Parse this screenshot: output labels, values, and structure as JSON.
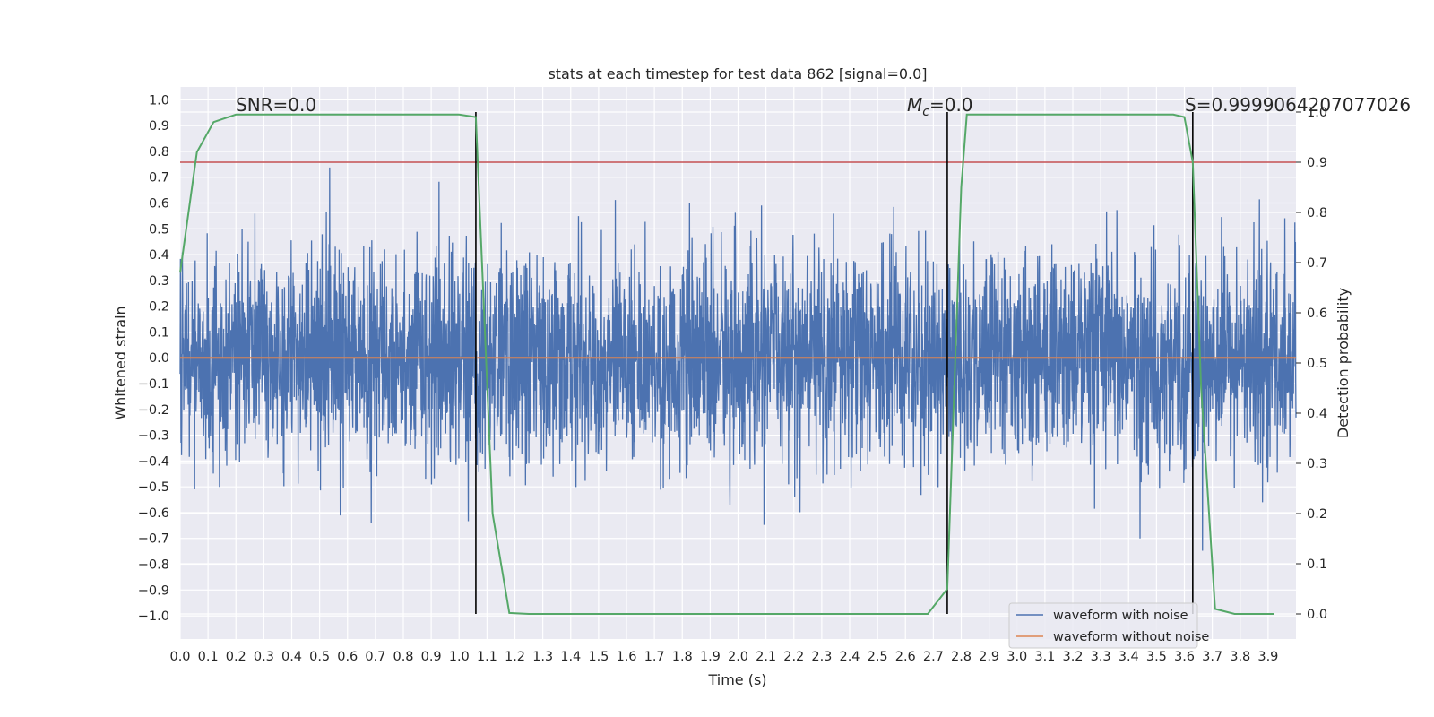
{
  "chart_data": {
    "type": "line",
    "title": "stats at each timestep for test data 862 [signal=0.0]",
    "xlabel": "Time (s)",
    "ylabel": "Whitened strain",
    "ylabel_right": "Detection probability",
    "xlim": [
      0.0,
      4.0
    ],
    "ylim": [
      -1.09,
      1.05
    ],
    "ylim_right": [
      -0.05,
      1.05
    ],
    "x_ticks": [
      "0.0",
      "0.1",
      "0.2",
      "0.3",
      "0.4",
      "0.5",
      "0.6",
      "0.7",
      "0.8",
      "0.9",
      "1.0",
      "1.1",
      "1.2",
      "1.3",
      "1.4",
      "1.5",
      "1.6",
      "1.7",
      "1.8",
      "1.9",
      "2.0",
      "2.1",
      "2.2",
      "2.3",
      "2.4",
      "2.5",
      "2.6",
      "2.7",
      "2.8",
      "2.9",
      "3.0",
      "3.1",
      "3.2",
      "3.3",
      "3.4",
      "3.5",
      "3.6",
      "3.7",
      "3.8",
      "3.9"
    ],
    "y_ticks": [
      "1.0",
      "0.9",
      "0.8",
      "0.7",
      "0.6",
      "0.5",
      "0.4",
      "0.3",
      "0.2",
      "0.1",
      "0.0",
      "−0.1",
      "−0.2",
      "−0.3",
      "−0.4",
      "−0.5",
      "−0.6",
      "−0.7",
      "−0.8",
      "−0.9",
      "−1.0"
    ],
    "y_ticks_right": [
      "1.0",
      "0.9",
      "0.8",
      "0.7",
      "0.6",
      "0.5",
      "0.4",
      "0.3",
      "0.2",
      "0.1",
      "0.0"
    ],
    "grid": true,
    "legend_position": "lower-right",
    "series": [
      {
        "name": "waveform with noise",
        "color": "#4c72b0",
        "kind": "noise",
        "amplitude": 0.35,
        "sample_rate_hz": 1000
      },
      {
        "name": "waveform without noise",
        "color": "#dd8452",
        "kind": "constant",
        "value": 0.0
      },
      {
        "name": "",
        "color": "#55a868",
        "axis": "right",
        "kind": "probability",
        "x": [
          0.0,
          0.06,
          0.12,
          0.2,
          0.5,
          1.0,
          1.06,
          1.12,
          1.18,
          1.25,
          2.5,
          2.68,
          2.75,
          2.8,
          2.82,
          2.86,
          3.56,
          3.6,
          3.63,
          3.66,
          3.71,
          3.78,
          3.92
        ],
        "y": [
          0.68,
          0.92,
          0.98,
          0.995,
          0.995,
          0.995,
          0.99,
          0.2,
          0.002,
          0.0,
          0.0,
          0.0,
          0.05,
          0.85,
          0.995,
          0.995,
          0.995,
          0.99,
          0.9,
          0.45,
          0.01,
          0.0,
          0.0
        ]
      }
    ],
    "threshold": {
      "value": 0.9,
      "axis": "right",
      "color": "#c44e52"
    },
    "vlines": [
      1.06,
      2.75,
      3.63
    ],
    "annotations": [
      "SNR=0.0",
      "=0.0",
      "S=0.9999064207077026"
    ],
    "annotation_mc_symbol": "M",
    "annotation_mc_sub": "c"
  }
}
